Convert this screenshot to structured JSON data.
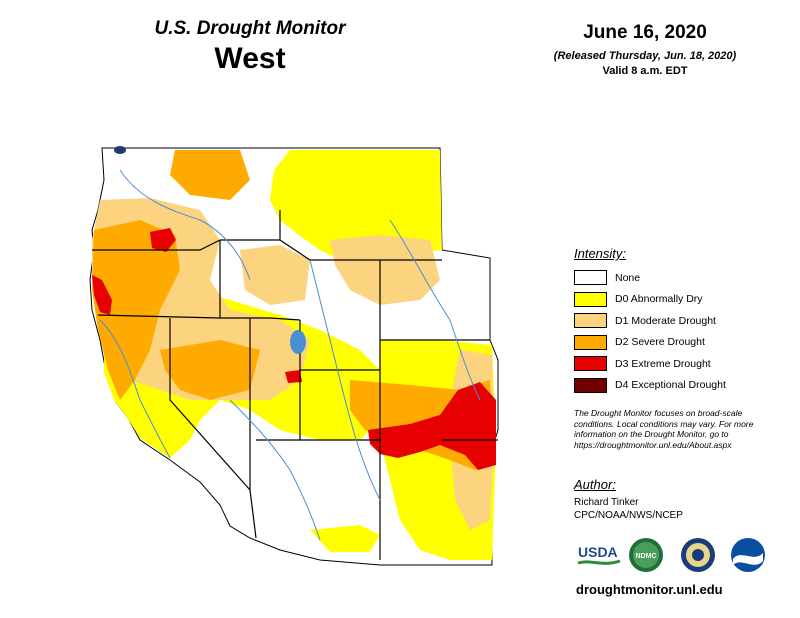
{
  "header": {
    "title": "U.S. Drought Monitor",
    "region": "West",
    "date": "June 16, 2020",
    "released": "(Released Thursday, Jun. 18, 2020)",
    "valid": "Valid 8 a.m. EDT"
  },
  "legend": {
    "title": "Intensity:",
    "items": [
      {
        "label": "None",
        "color": "#ffffff"
      },
      {
        "label": "D0 Abnormally Dry",
        "color": "#ffff00"
      },
      {
        "label": "D1 Moderate Drought",
        "color": "#fcd37f"
      },
      {
        "label": "D2 Severe Drought",
        "color": "#ffaa00"
      },
      {
        "label": "D3 Extreme Drought",
        "color": "#e60000"
      },
      {
        "label": "D4 Exceptional Drought",
        "color": "#730000"
      }
    ]
  },
  "note": "The Drought Monitor focuses on broad-scale conditions. Local conditions may vary. For more information on the Drought Monitor, go to https://droughtmonitor.unl.edu/About.aspx",
  "author": {
    "heading": "Author:",
    "name": "Richard Tinker",
    "org": "CPC/NOAA/NWS/NCEP"
  },
  "logos": {
    "usda": "USDA",
    "ndmc": "NDMC"
  },
  "website": "droughtmonitor.unl.edu"
}
